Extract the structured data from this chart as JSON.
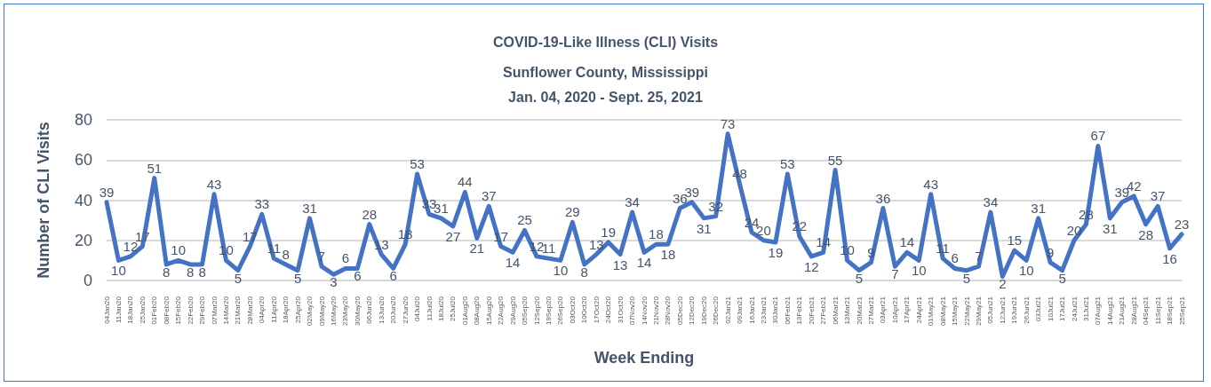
{
  "chart_data": {
    "type": "line",
    "title": "COVID-19-Like Illness (CLI) Visits",
    "subtitle": "Sunflower County, Mississippi\nJan. 04, 2020 - Sept. 25, 2021",
    "xlabel": "Week Ending",
    "ylabel": "Number of CLI Visits",
    "categories": [
      "04Jan20",
      "11Jan20",
      "18Jan20",
      "25Jan20",
      "01Feb20",
      "08Feb20",
      "15Feb20",
      "22Feb20",
      "29Feb20",
      "07Mar20",
      "14Mar20",
      "21Mar20",
      "28Mar20",
      "04Apr20",
      "11Apr20",
      "18Apr20",
      "25Apr20",
      "02May20",
      "09May20",
      "16May20",
      "23May20",
      "30May20",
      "06Jun20",
      "13Jun20",
      "20Jun20",
      "27Jun20",
      "04Jul20",
      "11Jul20",
      "18Jul20",
      "25Jul20",
      "01Aug20",
      "08Aug20",
      "15Aug20",
      "22Aug20",
      "29Aug20",
      "05Sep20",
      "12Sep20",
      "19Sep20",
      "26Sep20",
      "03Oct20",
      "10Oct20",
      "17Oct20",
      "24Oct20",
      "31Oct20",
      "07Nov20",
      "14Nov20",
      "21Nov20",
      "28Nov20",
      "05Dec20",
      "12Dec20",
      "19Dec20",
      "26Dec20",
      "02Jan21",
      "09Jan21",
      "16Jan21",
      "23Jan21",
      "30Jan21",
      "06Feb21",
      "13Feb21",
      "20Feb21",
      "27Feb21",
      "06Mar21",
      "13Mar21",
      "20Mar21",
      "27Mar21",
      "03Apr21",
      "10Apr21",
      "17Apr21",
      "24Apr21",
      "01May21",
      "08May21",
      "15May21",
      "22May21",
      "29May21",
      "05Jun21",
      "12Jun21",
      "19Jun21",
      "26Jun21",
      "03Jul21",
      "10Jul21",
      "17Jul21",
      "24Jul21",
      "31Jul21",
      "07Aug21",
      "14Aug21",
      "21Aug21",
      "28Aug21",
      "04Sep21",
      "11Sep21",
      "18Sep21",
      "25Sep21"
    ],
    "values": [
      39,
      10,
      12,
      17,
      51,
      8,
      10,
      8,
      8,
      43,
      10,
      5,
      17,
      33,
      11,
      8,
      5,
      31,
      7,
      3,
      6,
      6,
      28,
      13,
      6,
      18,
      53,
      33,
      31,
      27,
      44,
      21,
      37,
      17,
      14,
      25,
      12,
      11,
      10,
      29,
      8,
      13,
      19,
      13,
      34,
      14,
      18,
      18,
      36,
      39,
      31,
      32,
      73,
      48,
      24,
      20,
      19,
      53,
      22,
      12,
      14,
      55,
      10,
      5,
      9,
      36,
      7,
      14,
      10,
      43,
      11,
      6,
      5,
      7,
      34,
      2,
      15,
      10,
      31,
      9,
      5,
      20,
      28,
      67,
      31,
      39,
      42,
      28,
      37,
      16,
      23
    ],
    "color": "#4472c4",
    "ylim": [
      0,
      80
    ],
    "yticks": [
      0,
      20,
      40,
      60,
      80
    ],
    "grid": "y",
    "data_labels": true,
    "marker": "none",
    "line_style": "solid"
  }
}
